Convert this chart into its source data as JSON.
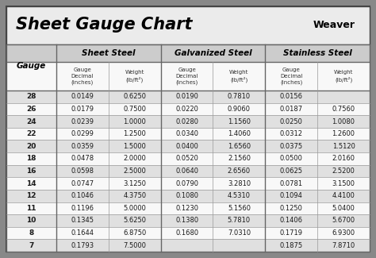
{
  "title": "Sheet Gauge Chart",
  "bg_outer": "#888888",
  "bg_inner": "#f5f5f5",
  "title_bg": "#f0f0f0",
  "header_bg": "#cccccc",
  "row_bg_odd": "#e0e0e0",
  "row_bg_even": "#f8f8f8",
  "gauges": [
    28,
    26,
    24,
    22,
    20,
    18,
    16,
    14,
    12,
    11,
    10,
    8,
    7
  ],
  "sheet_steel_decimal": [
    "0.0149",
    "0.0179",
    "0.0239",
    "0.0299",
    "0.0359",
    "0.0478",
    "0.0598",
    "0.0747",
    "0.1046",
    "0.1196",
    "0.1345",
    "0.1644",
    "0.1793"
  ],
  "sheet_steel_weight": [
    "0.6250",
    "0.7500",
    "1.0000",
    "1.2500",
    "1.5000",
    "2.0000",
    "2.5000",
    "3.1250",
    "4.3750",
    "5.0000",
    "5.6250",
    "6.8750",
    "7.5000"
  ],
  "galv_decimal": [
    "0.0190",
    "0.0220",
    "0.0280",
    "0.0340",
    "0.0400",
    "0.0520",
    "0.0640",
    "0.0790",
    "0.1080",
    "0.1230",
    "0.1380",
    "0.1680",
    ""
  ],
  "galv_weight": [
    "0.7810",
    "0.9060",
    "1.1560",
    "1.4060",
    "1.6560",
    "2.1560",
    "2.6560",
    "3.2810",
    "4.5310",
    "5.1560",
    "5.7810",
    "7.0310",
    ""
  ],
  "stainless_decimal": [
    "0.0156",
    "0.0187",
    "0.0250",
    "0.0312",
    "0.0375",
    "0.0500",
    "0.0625",
    "0.0781",
    "0.1094",
    "0.1250",
    "0.1406",
    "0.1719",
    "0.1875"
  ],
  "stainless_weight": [
    "",
    "0.7560",
    "1.0080",
    "1.2600",
    "1.5120",
    "2.0160",
    "2.5200",
    "3.1500",
    "4.4100",
    "5.0400",
    "5.6700",
    "6.9300",
    "7.8710"
  ],
  "weight_sup": "2"
}
